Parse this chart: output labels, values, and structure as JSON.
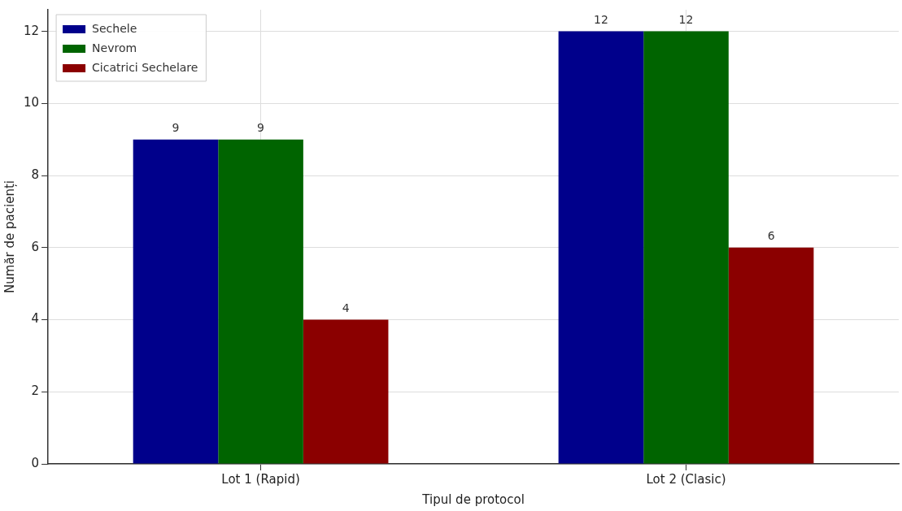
{
  "chart_data": {
    "type": "bar",
    "xlabel": "Tipul de protocol",
    "ylabel": "Număr de pacienți",
    "categories": [
      "Lot 1 (Rapid)",
      "Lot 2 (Clasic)"
    ],
    "series": [
      {
        "name": "Sechele",
        "color": "#00008b",
        "values": [
          9,
          12
        ]
      },
      {
        "name": "Nevrom",
        "color": "#006400",
        "values": [
          9,
          12
        ]
      },
      {
        "name": "Cicatrici Sechelare",
        "color": "#8b0000",
        "values": [
          4,
          6
        ]
      }
    ],
    "ylim": [
      0,
      12.6
    ],
    "yticks": [
      0,
      2,
      4,
      6,
      8,
      10,
      12
    ],
    "grid": true,
    "legend": "top left",
    "data_labels": true
  }
}
